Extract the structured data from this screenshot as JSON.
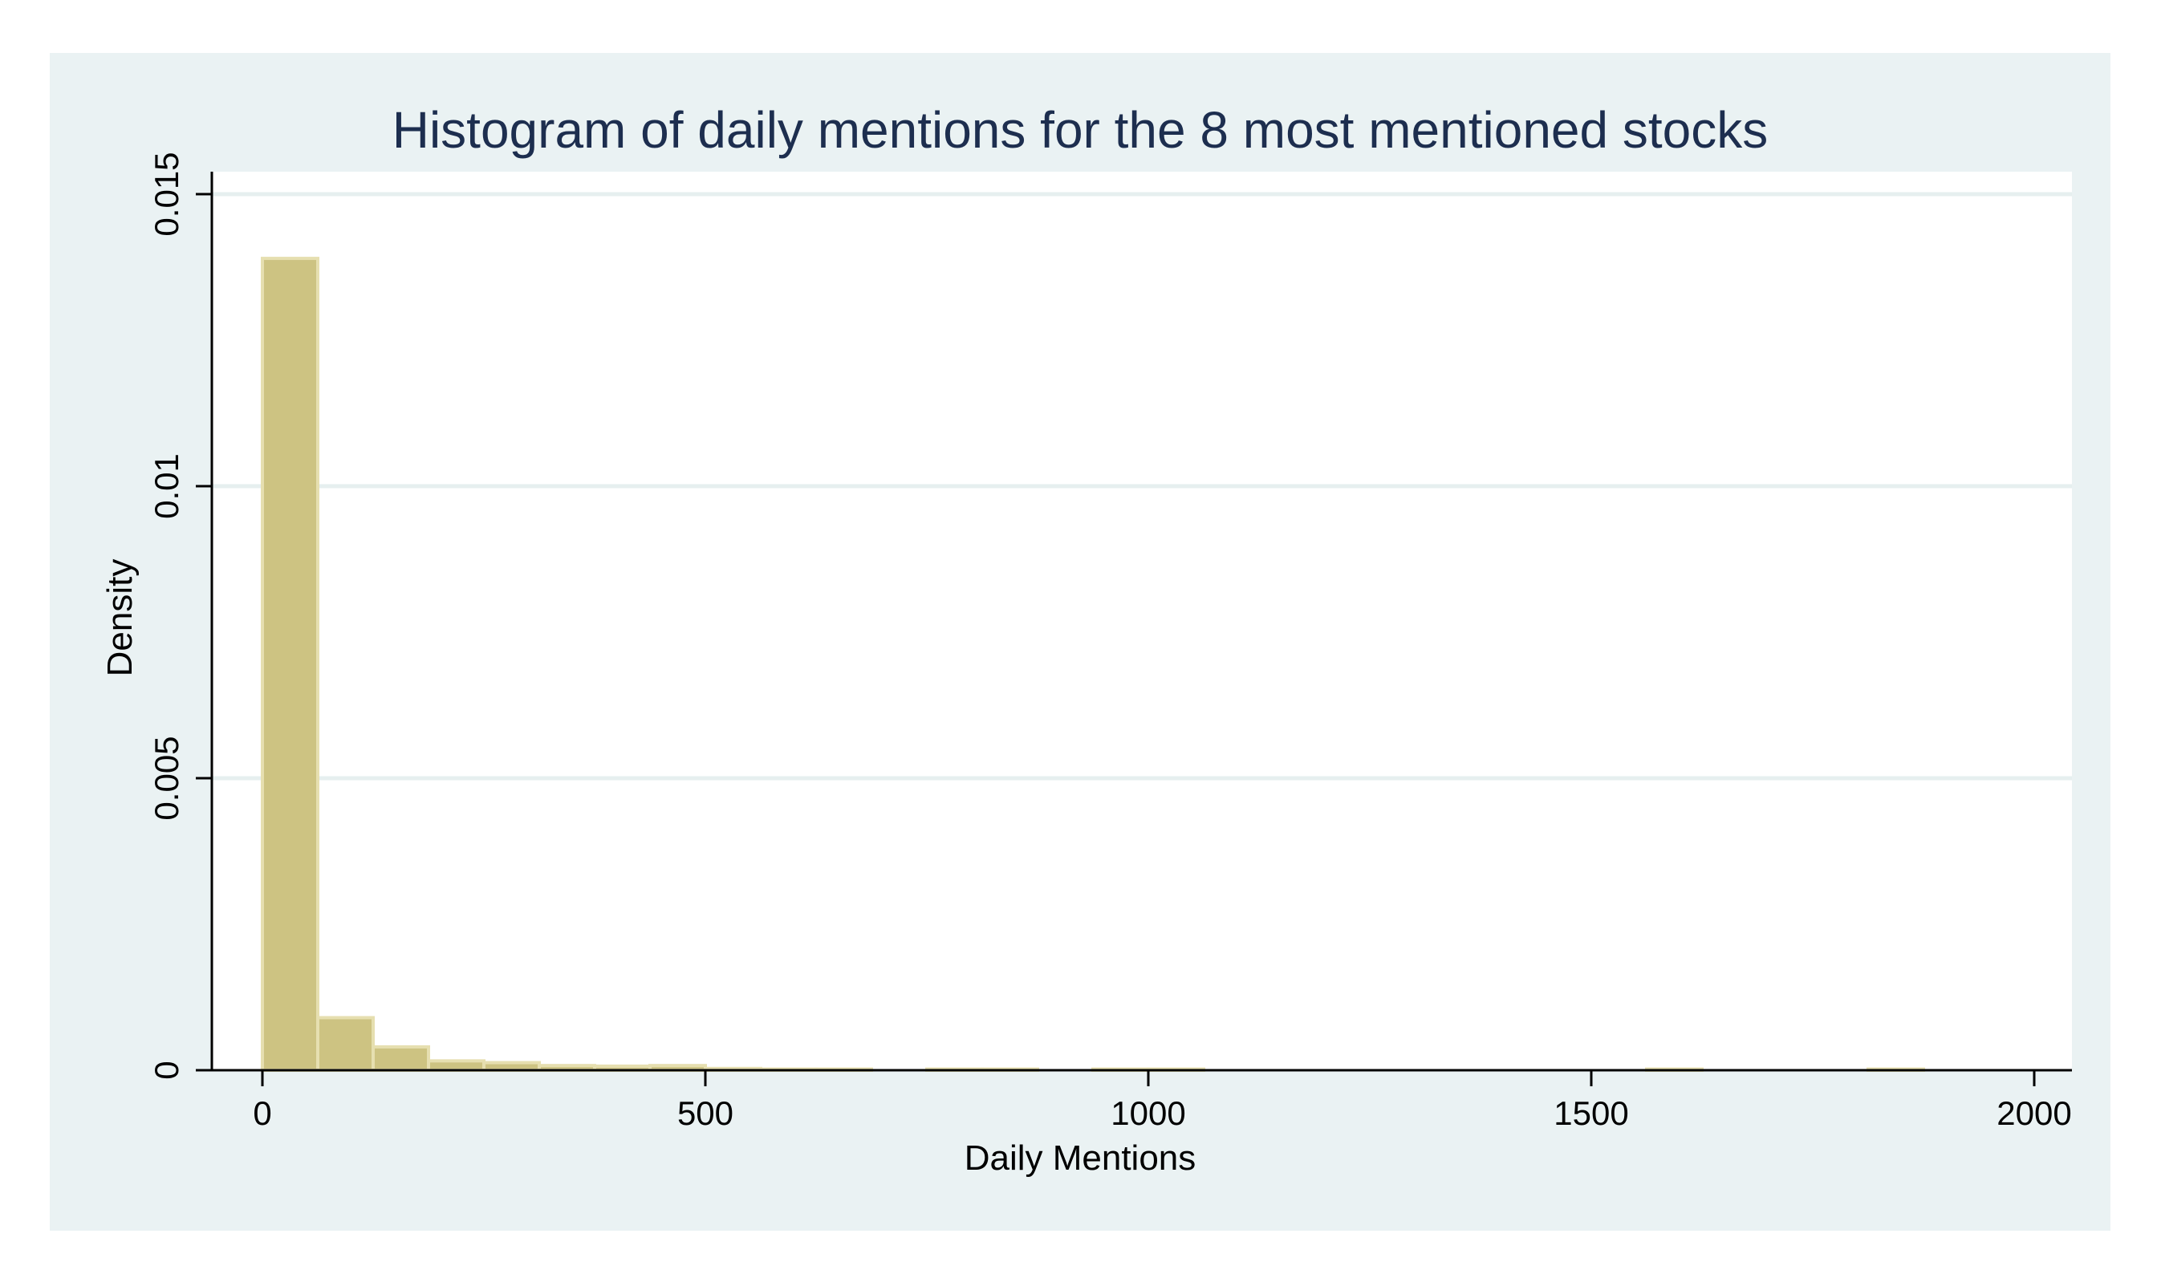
{
  "chart_data": {
    "type": "bar",
    "title": "Histogram of daily mentions for the 8 most mentioned stocks",
    "xlabel": "Daily Mentions",
    "ylabel": "Density",
    "xlim": [
      0,
      2000
    ],
    "ylim": [
      0,
      0.015
    ],
    "x_ticks": [
      "0",
      "500",
      "1000",
      "1500",
      "2000"
    ],
    "y_ticks": [
      "0",
      "0.005",
      "0.01",
      "0.015"
    ],
    "x_tick_values": [
      0,
      500,
      1000,
      1500,
      2000
    ],
    "y_tick_values": [
      0,
      0.005,
      0.01,
      0.015
    ],
    "grid": true,
    "bin_width": 62.5,
    "bins": [
      {
        "start": 0,
        "end": 62.5,
        "density": 0.0139
      },
      {
        "start": 62.5,
        "end": 125,
        "density": 0.0009
      },
      {
        "start": 125,
        "end": 187.5,
        "density": 0.0004
      },
      {
        "start": 187.5,
        "end": 250,
        "density": 0.00016
      },
      {
        "start": 250,
        "end": 312.5,
        "density": 0.00013
      },
      {
        "start": 312.5,
        "end": 375,
        "density": 8e-05
      },
      {
        "start": 375,
        "end": 437.5,
        "density": 7e-05
      },
      {
        "start": 437.5,
        "end": 500,
        "density": 8e-05
      },
      {
        "start": 500,
        "end": 562.5,
        "density": 3e-05
      },
      {
        "start": 562.5,
        "end": 625,
        "density": 2e-05
      },
      {
        "start": 625,
        "end": 687.5,
        "density": 2e-05
      },
      {
        "start": 750,
        "end": 812.5,
        "density": 2e-05
      },
      {
        "start": 812.5,
        "end": 875,
        "density": 2e-05
      },
      {
        "start": 937.5,
        "end": 1000,
        "density": 2e-05
      },
      {
        "start": 1000,
        "end": 1062.5,
        "density": 2e-05
      },
      {
        "start": 1562.5,
        "end": 1625,
        "density": 2e-05
      },
      {
        "start": 1812.5,
        "end": 1875,
        "density": 2e-05
      }
    ],
    "colors": {
      "bar_fill": "#cdc382",
      "bar_stroke": "#e6dfb0",
      "outer_background": "#eaf2f3",
      "plot_background": "#ffffff",
      "grid": "#e6efef",
      "title": "#1d2e4f"
    }
  }
}
